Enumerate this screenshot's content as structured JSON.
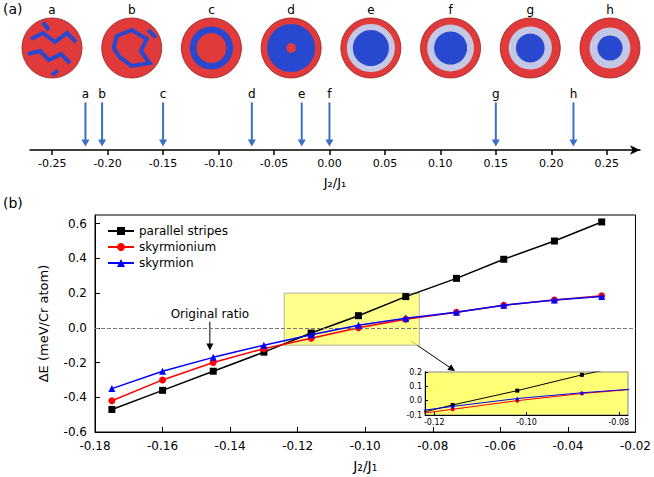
{
  "chart_data": [
    {
      "type": "number_line",
      "label": "(a)",
      "images": [
        "a",
        "b",
        "c",
        "d",
        "e",
        "f",
        "g",
        "h"
      ],
      "markers": {
        "labels": [
          "a",
          "b",
          "c",
          "d",
          "e",
          "f",
          "g",
          "h"
        ],
        "x": [
          -0.22,
          -0.205,
          -0.15,
          -0.07,
          -0.025,
          0.0,
          0.15,
          0.22
        ],
        "color": "#3a6fc4"
      },
      "xlabel": "J₂/J₁",
      "xlim": [
        -0.27,
        0.28
      ],
      "xticks": [
        -0.25,
        {
          "value": -0.2,
          "label": "-0.20"
        },
        -0.15,
        {
          "value": -0.1,
          "label": "-0.10"
        },
        -0.05,
        {
          "value": 0,
          "label": "0.00"
        },
        0.05,
        {
          "value": 0.1,
          "label": "0.10"
        },
        0.15,
        {
          "value": 0.2,
          "label": "0.20"
        },
        0.25
      ]
    },
    {
      "type": "line",
      "label": "(b)",
      "xlabel": "J₂/J₁",
      "ylabel": "ΔE (meV/Cr atom)",
      "x": [
        -0.175,
        -0.16,
        -0.145,
        -0.13,
        -0.116,
        -0.102,
        -0.088,
        -0.073,
        -0.059,
        -0.044,
        -0.03
      ],
      "series": [
        {
          "name": "parallel stripes",
          "color": "#000000",
          "marker": "square",
          "line_style": "solid",
          "values": [
            -0.47,
            -0.36,
            -0.25,
            -0.14,
            -0.03,
            0.07,
            0.18,
            0.285,
            0.395,
            0.5,
            0.61
          ]
        },
        {
          "name": "skyrmionium",
          "color": "#ff0000",
          "marker": "circle",
          "line_style": "solid",
          "values": [
            -0.42,
            -0.3,
            -0.2,
            -0.12,
            -0.06,
            0.0,
            0.05,
            0.09,
            0.13,
            0.16,
            0.185
          ]
        },
        {
          "name": "skyrmion",
          "color": "#0000ff",
          "marker": "triangle",
          "line_style": "solid",
          "values": [
            -0.35,
            -0.25,
            -0.17,
            -0.1,
            -0.04,
            0.015,
            0.055,
            0.09,
            0.13,
            0.16,
            0.18
          ]
        }
      ],
      "xlim": [
        -0.18,
        -0.02
      ],
      "xticks": [
        -0.18,
        -0.16,
        -0.14,
        -0.12,
        {
          "value": -0.1,
          "label": "-0.10"
        },
        -0.08,
        -0.06,
        -0.04,
        -0.02
      ],
      "ylim": [
        -0.6,
        0.65
      ],
      "yticks": [
        -0.6,
        -0.4,
        -0.2,
        {
          "value": 0,
          "label": "0.0"
        },
        0.2,
        0.4,
        0.6
      ],
      "legend": "upper left",
      "grid": false,
      "reference_lines": [
        {
          "y": 0,
          "line_style": "dashed"
        }
      ],
      "annotations": [
        {
          "text": "Original ratio",
          "x": -0.146,
          "y": -0.13
        }
      ],
      "highlight": {
        "x": [
          -0.124,
          -0.084
        ],
        "y": [
          -0.1,
          0.2
        ],
        "color": "#ffff66"
      },
      "inset": {
        "xlim": [
          -0.122,
          -0.078
        ],
        "xticks": [
          -0.12,
          {
            "value": -0.1,
            "label": "-0.10"
          },
          -0.08
        ],
        "ylim": [
          -0.1,
          0.2
        ],
        "yticks": [
          -0.1,
          {
            "value": 0,
            "label": "0.0"
          },
          0.1,
          0.2
        ]
      }
    }
  ]
}
